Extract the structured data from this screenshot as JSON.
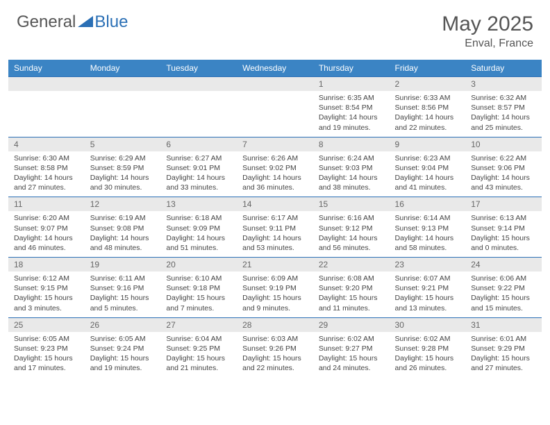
{
  "brand": {
    "general": "General",
    "blue": "Blue"
  },
  "title": "May 2025",
  "location": "Enval, France",
  "colors": {
    "header_bg": "#3b84c4",
    "border": "#2a6fb5",
    "daynum_bg": "#e9e9e9",
    "text": "#444444",
    "title_color": "#555555"
  },
  "dayHeaders": [
    "Sunday",
    "Monday",
    "Tuesday",
    "Wednesday",
    "Thursday",
    "Friday",
    "Saturday"
  ],
  "weeks": [
    [
      {
        "n": "",
        "sr": "",
        "ss": "",
        "dl": ""
      },
      {
        "n": "",
        "sr": "",
        "ss": "",
        "dl": ""
      },
      {
        "n": "",
        "sr": "",
        "ss": "",
        "dl": ""
      },
      {
        "n": "",
        "sr": "",
        "ss": "",
        "dl": ""
      },
      {
        "n": "1",
        "sr": "Sunrise: 6:35 AM",
        "ss": "Sunset: 8:54 PM",
        "dl": "Daylight: 14 hours and 19 minutes."
      },
      {
        "n": "2",
        "sr": "Sunrise: 6:33 AM",
        "ss": "Sunset: 8:56 PM",
        "dl": "Daylight: 14 hours and 22 minutes."
      },
      {
        "n": "3",
        "sr": "Sunrise: 6:32 AM",
        "ss": "Sunset: 8:57 PM",
        "dl": "Daylight: 14 hours and 25 minutes."
      }
    ],
    [
      {
        "n": "4",
        "sr": "Sunrise: 6:30 AM",
        "ss": "Sunset: 8:58 PM",
        "dl": "Daylight: 14 hours and 27 minutes."
      },
      {
        "n": "5",
        "sr": "Sunrise: 6:29 AM",
        "ss": "Sunset: 8:59 PM",
        "dl": "Daylight: 14 hours and 30 minutes."
      },
      {
        "n": "6",
        "sr": "Sunrise: 6:27 AM",
        "ss": "Sunset: 9:01 PM",
        "dl": "Daylight: 14 hours and 33 minutes."
      },
      {
        "n": "7",
        "sr": "Sunrise: 6:26 AM",
        "ss": "Sunset: 9:02 PM",
        "dl": "Daylight: 14 hours and 36 minutes."
      },
      {
        "n": "8",
        "sr": "Sunrise: 6:24 AM",
        "ss": "Sunset: 9:03 PM",
        "dl": "Daylight: 14 hours and 38 minutes."
      },
      {
        "n": "9",
        "sr": "Sunrise: 6:23 AM",
        "ss": "Sunset: 9:04 PM",
        "dl": "Daylight: 14 hours and 41 minutes."
      },
      {
        "n": "10",
        "sr": "Sunrise: 6:22 AM",
        "ss": "Sunset: 9:06 PM",
        "dl": "Daylight: 14 hours and 43 minutes."
      }
    ],
    [
      {
        "n": "11",
        "sr": "Sunrise: 6:20 AM",
        "ss": "Sunset: 9:07 PM",
        "dl": "Daylight: 14 hours and 46 minutes."
      },
      {
        "n": "12",
        "sr": "Sunrise: 6:19 AM",
        "ss": "Sunset: 9:08 PM",
        "dl": "Daylight: 14 hours and 48 minutes."
      },
      {
        "n": "13",
        "sr": "Sunrise: 6:18 AM",
        "ss": "Sunset: 9:09 PM",
        "dl": "Daylight: 14 hours and 51 minutes."
      },
      {
        "n": "14",
        "sr": "Sunrise: 6:17 AM",
        "ss": "Sunset: 9:11 PM",
        "dl": "Daylight: 14 hours and 53 minutes."
      },
      {
        "n": "15",
        "sr": "Sunrise: 6:16 AM",
        "ss": "Sunset: 9:12 PM",
        "dl": "Daylight: 14 hours and 56 minutes."
      },
      {
        "n": "16",
        "sr": "Sunrise: 6:14 AM",
        "ss": "Sunset: 9:13 PM",
        "dl": "Daylight: 14 hours and 58 minutes."
      },
      {
        "n": "17",
        "sr": "Sunrise: 6:13 AM",
        "ss": "Sunset: 9:14 PM",
        "dl": "Daylight: 15 hours and 0 minutes."
      }
    ],
    [
      {
        "n": "18",
        "sr": "Sunrise: 6:12 AM",
        "ss": "Sunset: 9:15 PM",
        "dl": "Daylight: 15 hours and 3 minutes."
      },
      {
        "n": "19",
        "sr": "Sunrise: 6:11 AM",
        "ss": "Sunset: 9:16 PM",
        "dl": "Daylight: 15 hours and 5 minutes."
      },
      {
        "n": "20",
        "sr": "Sunrise: 6:10 AM",
        "ss": "Sunset: 9:18 PM",
        "dl": "Daylight: 15 hours and 7 minutes."
      },
      {
        "n": "21",
        "sr": "Sunrise: 6:09 AM",
        "ss": "Sunset: 9:19 PM",
        "dl": "Daylight: 15 hours and 9 minutes."
      },
      {
        "n": "22",
        "sr": "Sunrise: 6:08 AM",
        "ss": "Sunset: 9:20 PM",
        "dl": "Daylight: 15 hours and 11 minutes."
      },
      {
        "n": "23",
        "sr": "Sunrise: 6:07 AM",
        "ss": "Sunset: 9:21 PM",
        "dl": "Daylight: 15 hours and 13 minutes."
      },
      {
        "n": "24",
        "sr": "Sunrise: 6:06 AM",
        "ss": "Sunset: 9:22 PM",
        "dl": "Daylight: 15 hours and 15 minutes."
      }
    ],
    [
      {
        "n": "25",
        "sr": "Sunrise: 6:05 AM",
        "ss": "Sunset: 9:23 PM",
        "dl": "Daylight: 15 hours and 17 minutes."
      },
      {
        "n": "26",
        "sr": "Sunrise: 6:05 AM",
        "ss": "Sunset: 9:24 PM",
        "dl": "Daylight: 15 hours and 19 minutes."
      },
      {
        "n": "27",
        "sr": "Sunrise: 6:04 AM",
        "ss": "Sunset: 9:25 PM",
        "dl": "Daylight: 15 hours and 21 minutes."
      },
      {
        "n": "28",
        "sr": "Sunrise: 6:03 AM",
        "ss": "Sunset: 9:26 PM",
        "dl": "Daylight: 15 hours and 22 minutes."
      },
      {
        "n": "29",
        "sr": "Sunrise: 6:02 AM",
        "ss": "Sunset: 9:27 PM",
        "dl": "Daylight: 15 hours and 24 minutes."
      },
      {
        "n": "30",
        "sr": "Sunrise: 6:02 AM",
        "ss": "Sunset: 9:28 PM",
        "dl": "Daylight: 15 hours and 26 minutes."
      },
      {
        "n": "31",
        "sr": "Sunrise: 6:01 AM",
        "ss": "Sunset: 9:29 PM",
        "dl": "Daylight: 15 hours and 27 minutes."
      }
    ]
  ]
}
